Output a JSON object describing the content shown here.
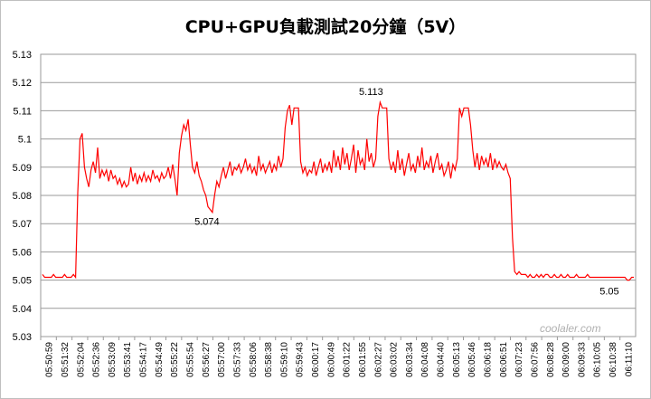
{
  "chart_data": {
    "type": "line",
    "title": "CPU+GPU負載測試20分鐘（5V）",
    "xlabel": "",
    "ylabel": "",
    "ylim": [
      5.03,
      5.13
    ],
    "yticks": [
      "5.13",
      "5.12",
      "5.11",
      "5.1",
      "5.09",
      "5.08",
      "5.07",
      "5.06",
      "5.05",
      "5.04",
      "5.03"
    ],
    "grid": "horizontal",
    "legend": "none",
    "line_color": "#ff0000",
    "x_ticks": [
      "05:50:59",
      "05:51:32",
      "05:52:04",
      "05:52:36",
      "05:53:09",
      "05:53:41",
      "05:54:17",
      "05:54:49",
      "05:55:22",
      "05:55:54",
      "05:56:27",
      "05:57:00",
      "05:57:33",
      "05:58:06",
      "05:58:38",
      "05:59:10",
      "05:59:43",
      "06:00:17",
      "06:00:49",
      "06:01:22",
      "06:01:55",
      "06:02:27",
      "06:03:02",
      "06:03:34",
      "06:04:08",
      "06:04:40",
      "06:05:13",
      "06:05:46",
      "06:06:18",
      "06:06:51",
      "06:07:23",
      "06:07:56",
      "06:08:28",
      "06:09:00",
      "06:09:33",
      "06:10:05",
      "06:10:38",
      "06:11:10"
    ],
    "series": [
      {
        "values": [
          5.052,
          5.051,
          5.051,
          5.051,
          5.051,
          5.052,
          5.051,
          5.051,
          5.051,
          5.051,
          5.052,
          5.051,
          5.051,
          5.051,
          5.052,
          5.051,
          5.081,
          5.1,
          5.102,
          5.09,
          5.086,
          5.083,
          5.089,
          5.092,
          5.088,
          5.097,
          5.086,
          5.089,
          5.087,
          5.089,
          5.085,
          5.089,
          5.086,
          5.087,
          5.084,
          5.086,
          5.083,
          5.085,
          5.083,
          5.084,
          5.09,
          5.085,
          5.088,
          5.084,
          5.087,
          5.085,
          5.088,
          5.085,
          5.087,
          5.085,
          5.089,
          5.086,
          5.087,
          5.085,
          5.088,
          5.086,
          5.087,
          5.09,
          5.086,
          5.091,
          5.086,
          5.08,
          5.095,
          5.101,
          5.105,
          5.103,
          5.107,
          5.098,
          5.09,
          5.088,
          5.092,
          5.087,
          5.085,
          5.082,
          5.08,
          5.076,
          5.075,
          5.074,
          5.08,
          5.085,
          5.083,
          5.087,
          5.09,
          5.086,
          5.089,
          5.092,
          5.087,
          5.09,
          5.089,
          5.091,
          5.088,
          5.09,
          5.093,
          5.089,
          5.091,
          5.088,
          5.09,
          5.087,
          5.094,
          5.089,
          5.091,
          5.088,
          5.09,
          5.092,
          5.088,
          5.091,
          5.089,
          5.094,
          5.09,
          5.093,
          5.104,
          5.11,
          5.112,
          5.105,
          5.111,
          5.111,
          5.111,
          5.092,
          5.088,
          5.09,
          5.087,
          5.089,
          5.088,
          5.092,
          5.087,
          5.09,
          5.093,
          5.088,
          5.091,
          5.089,
          5.092,
          5.088,
          5.096,
          5.09,
          5.094,
          5.089,
          5.097,
          5.091,
          5.095,
          5.089,
          5.093,
          5.098,
          5.088,
          5.096,
          5.091,
          5.093,
          5.089,
          5.1,
          5.092,
          5.095,
          5.09,
          5.093,
          5.108,
          5.113,
          5.111,
          5.111,
          5.111,
          5.093,
          5.089,
          5.092,
          5.088,
          5.096,
          5.089,
          5.093,
          5.087,
          5.091,
          5.095,
          5.089,
          5.091,
          5.088,
          5.094,
          5.09,
          5.097,
          5.089,
          5.092,
          5.09,
          5.094,
          5.088,
          5.092,
          5.095,
          5.089,
          5.091,
          5.087,
          5.089,
          5.092,
          5.086,
          5.091,
          5.089,
          5.093,
          5.111,
          5.108,
          5.111,
          5.111,
          5.111,
          5.105,
          5.096,
          5.09,
          5.095,
          5.089,
          5.094,
          5.091,
          5.093,
          5.09,
          5.095,
          5.089,
          5.093,
          5.09,
          5.092,
          5.09,
          5.089,
          5.091,
          5.088,
          5.086,
          5.065,
          5.053,
          5.052,
          5.053,
          5.052,
          5.052,
          5.052,
          5.051,
          5.052,
          5.051,
          5.051,
          5.052,
          5.051,
          5.052,
          5.051,
          5.052,
          5.052,
          5.051,
          5.051,
          5.052,
          5.051,
          5.051,
          5.052,
          5.051,
          5.051,
          5.052,
          5.051,
          5.051,
          5.051,
          5.052,
          5.051,
          5.051,
          5.051,
          5.051,
          5.052,
          5.051,
          5.051,
          5.051,
          5.051,
          5.051,
          5.051,
          5.051,
          5.051,
          5.051,
          5.051,
          5.051,
          5.051,
          5.051,
          5.051,
          5.051,
          5.051,
          5.051,
          5.05,
          5.05,
          5.051,
          5.051
        ]
      }
    ],
    "annotations": [
      {
        "text": "5.113",
        "value": 5.113
      },
      {
        "text": "5.074",
        "value": 5.074
      },
      {
        "text": "5.05",
        "value": 5.05
      }
    ],
    "watermark": "coolaler.com"
  }
}
